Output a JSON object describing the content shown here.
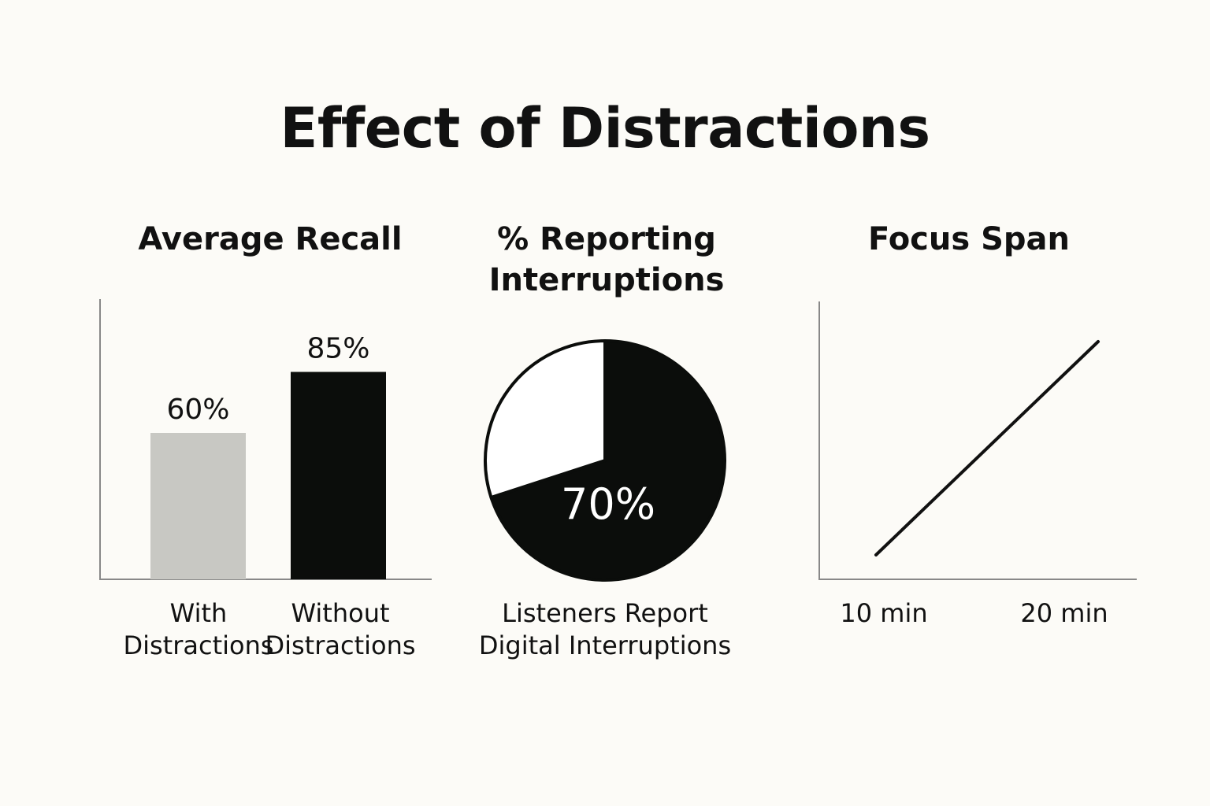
{
  "title": "Effect of Distractions",
  "chart_data": [
    {
      "type": "bar",
      "title": "Average Recall",
      "categories": [
        "With\nDistractions",
        "Without\nDistractions"
      ],
      "values": [
        60,
        85
      ],
      "data_labels": [
        "60%",
        "85%"
      ],
      "colors": [
        "#c8c8c3",
        "#0b0d0b"
      ],
      "ylim": [
        0,
        100
      ],
      "grid": false
    },
    {
      "type": "pie",
      "title": "% Reporting\nInterruptions",
      "values": [
        70,
        30
      ],
      "data_labels": [
        "70%"
      ],
      "colors": [
        "#0b0d0b",
        "#ffffff"
      ],
      "caption": "Listeners Report\nDigital Interruptions"
    },
    {
      "type": "line",
      "title": "Focus Span",
      "x_tick_labels": [
        "10 min",
        "20 min"
      ],
      "grid": false
    }
  ]
}
